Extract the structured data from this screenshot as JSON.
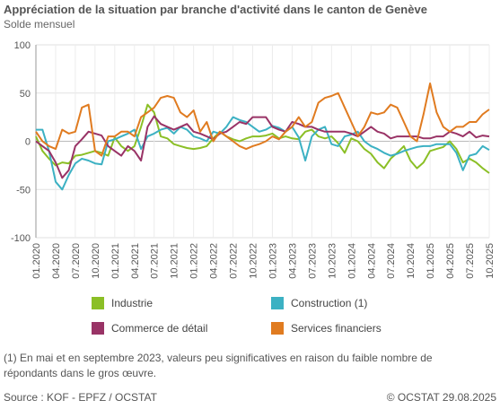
{
  "header": {
    "title": "Appréciation de la situation par branche d'activité dans le canton de Genève",
    "subtitle": "Solde mensuel"
  },
  "footnote": "(1) En mai et en septembre 2023, valeurs peu significatives en raison du faible nombre de répondants dans le gros œuvre.",
  "source": "Source : KOF - EPFZ / OCSTAT",
  "copyright": "© OCSTAT 29.08.2025",
  "legend": [
    {
      "label": "Industrie",
      "color": "#8bbf26"
    },
    {
      "label": "Construction (1)",
      "color": "#3cb1c3"
    },
    {
      "label": "Commerce de détail",
      "color": "#993366"
    },
    {
      "label": "Services financiers",
      "color": "#e07b20"
    }
  ],
  "chart_data": {
    "type": "line",
    "title": "Appréciation de la situation par branche d'activité dans le canton de Genève",
    "subtitle": "Solde mensuel",
    "ylim": [
      -100,
      100
    ],
    "yticks": [
      -100,
      -50,
      0,
      50,
      100
    ],
    "x_start": "2020-01",
    "x_end": "2025-10",
    "xticks": [
      "01.2020",
      "04.2020",
      "07.2020",
      "10.2020",
      "01.2021",
      "04.2021",
      "07.2021",
      "10.2021",
      "01.2022",
      "04.2022",
      "07.2022",
      "10.2022",
      "01.2023",
      "04.2023",
      "07.2023",
      "10.2023",
      "01.2024",
      "04.2024",
      "07.2024",
      "10.2024",
      "01.2025",
      "04.2025",
      "07.2025",
      "10.2025"
    ],
    "grid": true,
    "legend_position": "bottom",
    "series": [
      {
        "name": "Industrie",
        "color": "#8bbf26",
        "values": [
          5,
          -10,
          -18,
          -25,
          -22,
          -23,
          -15,
          -14,
          -12,
          -10,
          -12,
          -15,
          4,
          -5,
          -10,
          -5,
          15,
          38,
          30,
          5,
          3,
          -3,
          -5,
          -7,
          -8,
          -7,
          -5,
          3,
          10,
          5,
          2,
          0,
          3,
          5,
          5,
          6,
          8,
          3,
          5,
          3,
          2,
          10,
          12,
          5,
          3,
          5,
          -2,
          -12,
          3,
          0,
          -8,
          -13,
          -22,
          -28,
          -18,
          -12,
          -5,
          -20,
          -28,
          -22,
          -10,
          -8,
          -6,
          0,
          -8,
          -22,
          -18,
          -22,
          -28,
          -33
        ]
      },
      {
        "name": "Construction (1)",
        "color": "#3cb1c3",
        "values": [
          12,
          12,
          -10,
          -42,
          -50,
          -35,
          -23,
          -18,
          -20,
          -23,
          -24,
          0,
          2,
          5,
          8,
          12,
          -8,
          5,
          8,
          12,
          14,
          8,
          15,
          12,
          5,
          3,
          0,
          10,
          8,
          15,
          25,
          22,
          20,
          15,
          10,
          12,
          16,
          14,
          10,
          15,
          4,
          -20,
          5,
          12,
          15,
          -3,
          -5,
          5,
          7,
          10,
          0,
          -5,
          -8,
          -12,
          -15,
          -13,
          -10,
          -8,
          -6,
          -5,
          -5,
          -3,
          -3,
          -3,
          -12,
          -30,
          -15,
          -13,
          -5,
          -9
        ]
      },
      {
        "name": "Commerce de détail",
        "color": "#993366",
        "values": [
          0,
          -5,
          -10,
          -22,
          -38,
          -30,
          -5,
          2,
          10,
          8,
          6,
          -5,
          -10,
          -15,
          -5,
          -10,
          -20,
          15,
          26,
          18,
          15,
          12,
          15,
          18,
          10,
          8,
          5,
          2,
          8,
          10,
          15,
          20,
          18,
          25,
          25,
          25,
          15,
          12,
          10,
          20,
          18,
          15,
          15,
          12,
          10,
          10,
          10,
          10,
          8,
          5,
          10,
          15,
          10,
          8,
          3,
          5,
          5,
          5,
          5,
          3,
          3,
          5,
          5,
          10,
          8,
          5,
          10,
          4,
          6,
          5
        ]
      },
      {
        "name": "Services financiers",
        "color": "#e07b20",
        "values": [
          10,
          0,
          -5,
          -8,
          12,
          8,
          10,
          35,
          38,
          -10,
          -15,
          5,
          5,
          10,
          10,
          5,
          25,
          30,
          35,
          45,
          47,
          45,
          30,
          25,
          32,
          10,
          20,
          0,
          10,
          5,
          0,
          -5,
          -8,
          -5,
          -3,
          0,
          5,
          2,
          10,
          15,
          25,
          15,
          20,
          40,
          45,
          47,
          50,
          35,
          20,
          5,
          15,
          30,
          28,
          30,
          38,
          35,
          20,
          5,
          0,
          28,
          60,
          30,
          15,
          10,
          15,
          15,
          20,
          20,
          28,
          33
        ]
      }
    ]
  }
}
